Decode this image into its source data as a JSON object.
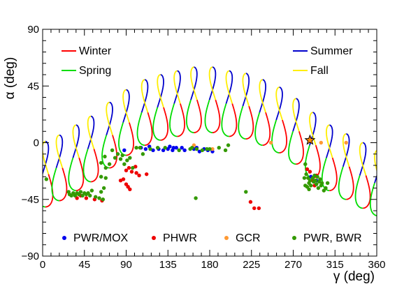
{
  "chart_data": {
    "type": "scatter",
    "xlabel": "γ (deg)",
    "ylabel": "α (deg)",
    "xlim": [
      0,
      360
    ],
    "ylim": [
      -90,
      90
    ],
    "xticks": [
      0,
      45,
      90,
      135,
      180,
      225,
      270,
      315,
      360
    ],
    "xtick_labels": [
      "0",
      "45",
      "90",
      "135",
      "180",
      "225",
      "270",
      "315",
      "360"
    ],
    "yticks": [
      -90,
      -45,
      0,
      45,
      90
    ],
    "ytick_labels": [
      "−90",
      "−45",
      "0",
      "45",
      "90"
    ],
    "grid": false,
    "season_legend": [
      {
        "name": "Winter",
        "color": "#ff0000"
      },
      {
        "name": "Spring",
        "color": "#00dd00"
      },
      {
        "name": "Summer",
        "color": "#0000cc"
      },
      {
        "name": "Fall",
        "color": "#ffee00"
      }
    ],
    "loops": [
      {
        "center_x": 3,
        "center_y": -25
      },
      {
        "center_x": 18,
        "center_y": -20
      },
      {
        "center_x": 36,
        "center_y": -12
      },
      {
        "center_x": 52,
        "center_y": -5
      },
      {
        "center_x": 72,
        "center_y": 6
      },
      {
        "center_x": 90,
        "center_y": 16
      },
      {
        "center_x": 110,
        "center_y": 24
      },
      {
        "center_x": 127,
        "center_y": 28
      },
      {
        "center_x": 145,
        "center_y": 31
      },
      {
        "center_x": 163,
        "center_y": 34
      },
      {
        "center_x": 183,
        "center_y": 34
      },
      {
        "center_x": 201,
        "center_y": 31
      },
      {
        "center_x": 219,
        "center_y": 29
      },
      {
        "center_x": 237,
        "center_y": 24
      },
      {
        "center_x": 255,
        "center_y": 18
      },
      {
        "center_x": 273,
        "center_y": 9
      },
      {
        "center_x": 291,
        "center_y": -2
      },
      {
        "center_x": 309,
        "center_y": -12
      },
      {
        "center_x": 327,
        "center_y": -19
      },
      {
        "center_x": 345,
        "center_y": -26
      },
      {
        "center_x": 361,
        "center_y": -32
      }
    ],
    "marker": {
      "x": 288,
      "y": 2,
      "color": "#ff8800"
    },
    "series": [
      {
        "name": "PWR/MOX",
        "color": "#0000ee",
        "points": [
          [
            88,
            -6
          ],
          [
            106,
            -4
          ],
          [
            111,
            -5
          ],
          [
            115,
            -3
          ],
          [
            119,
            -6
          ],
          [
            125,
            -5
          ],
          [
            130,
            -6
          ],
          [
            135,
            -5
          ],
          [
            137,
            -3
          ],
          [
            140,
            -6
          ],
          [
            141,
            -4
          ],
          [
            144,
            -4
          ],
          [
            150,
            -4
          ],
          [
            153,
            -6
          ],
          [
            163,
            -5
          ],
          [
            166,
            -4
          ],
          [
            169,
            -7
          ],
          [
            174,
            -5
          ],
          [
            178,
            -6
          ],
          [
            183,
            -7
          ],
          [
            289,
            -27
          ],
          [
            295,
            -30
          ]
        ]
      },
      {
        "name": "PHWR",
        "color": "#ee0000",
        "points": [
          [
            37,
            -44
          ],
          [
            41,
            -42
          ],
          [
            47,
            -44
          ],
          [
            56,
            -45
          ],
          [
            64,
            -46
          ],
          [
            84,
            -30
          ],
          [
            87,
            -29
          ],
          [
            90,
            -33
          ],
          [
            92,
            -35
          ],
          [
            94,
            -37
          ],
          [
            90,
            -22
          ],
          [
            93,
            -20
          ],
          [
            96,
            -23
          ],
          [
            100,
            -19
          ],
          [
            101,
            -24
          ],
          [
            104,
            -26
          ],
          [
            112,
            -25
          ],
          [
            224,
            -47
          ],
          [
            228,
            -52
          ],
          [
            233,
            -52
          ],
          [
            285,
            -21
          ],
          [
            288,
            -23
          ],
          [
            291,
            -30
          ],
          [
            295,
            -26
          ],
          [
            293,
            -34
          ]
        ]
      },
      {
        "name": "GCR",
        "color": "#ff9933",
        "points": [
          [
            163,
            -2
          ],
          [
            183,
            -5
          ],
          [
            246,
            0
          ],
          [
            300,
            0
          ],
          [
            327,
            0
          ]
        ]
      },
      {
        "name": "PWR, BWR",
        "color": "#339900",
        "points": [
          [
            4,
            -29
          ],
          [
            28,
            -39
          ],
          [
            29,
            -41
          ],
          [
            31,
            -42
          ],
          [
            33,
            -40
          ],
          [
            35,
            -42
          ],
          [
            37,
            -40
          ],
          [
            39,
            -41
          ],
          [
            41,
            -39
          ],
          [
            43,
            -42
          ],
          [
            45,
            -40
          ],
          [
            47,
            -41
          ],
          [
            49,
            -40
          ],
          [
            51,
            -42
          ],
          [
            53,
            -38
          ],
          [
            57,
            -43
          ],
          [
            61,
            -44
          ],
          [
            65,
            -45
          ],
          [
            63,
            -39
          ],
          [
            63,
            -27
          ],
          [
            66,
            -36
          ],
          [
            68,
            -20
          ],
          [
            68,
            -28
          ],
          [
            63,
            -16
          ],
          [
            67,
            -11
          ],
          [
            72,
            -17
          ],
          [
            75,
            -6
          ],
          [
            78,
            -12
          ],
          [
            81,
            -9
          ],
          [
            84,
            -13
          ],
          [
            86,
            -10
          ],
          [
            88,
            -17
          ],
          [
            91,
            -14
          ],
          [
            94,
            -12
          ],
          [
            97,
            -20
          ],
          [
            101,
            -4
          ],
          [
            105,
            -4
          ],
          [
            108,
            -9
          ],
          [
            116,
            -5
          ],
          [
            124,
            -4
          ],
          [
            132,
            -4
          ],
          [
            147,
            -6
          ],
          [
            159,
            -5
          ],
          [
            161,
            -4
          ],
          [
            166,
            -5
          ],
          [
            172,
            -6
          ],
          [
            177,
            -5
          ],
          [
            180,
            -5
          ],
          [
            190,
            -4
          ],
          [
            197,
            -6
          ],
          [
            200,
            -2
          ],
          [
            165,
            -44
          ],
          [
            219,
            -39
          ],
          [
            283,
            -17
          ],
          [
            284,
            -25
          ],
          [
            286,
            -28
          ],
          [
            287,
            -32
          ],
          [
            288,
            -30
          ],
          [
            289,
            -34
          ],
          [
            291,
            -28
          ],
          [
            292,
            -31
          ],
          [
            293,
            -26
          ],
          [
            294,
            -30
          ],
          [
            295,
            -33
          ],
          [
            296,
            -27
          ],
          [
            297,
            -36
          ],
          [
            298,
            -31
          ],
          [
            299,
            -29
          ],
          [
            300,
            -34
          ],
          [
            301,
            -32
          ],
          [
            303,
            -38
          ],
          [
            305,
            -36
          ],
          [
            307,
            -32
          ],
          [
            285,
            -35
          ],
          [
            287,
            -37
          ],
          [
            283,
            -34
          ],
          [
            282,
            -28
          ]
        ]
      }
    ]
  }
}
